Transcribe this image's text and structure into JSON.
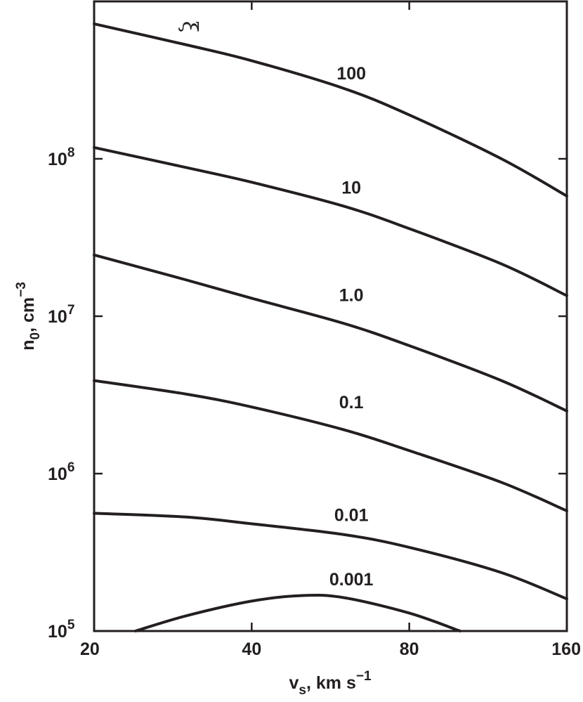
{
  "chart_data": {
    "type": "line",
    "xlabel": {
      "main": "v",
      "sub": "s",
      "rest": ", km s",
      "sup": "−1"
    },
    "ylabel": {
      "main": "n",
      "sub": "0",
      "rest": ", cm",
      "sup": "−3"
    },
    "x_scale": "log",
    "y_scale": "log",
    "xlim": [
      20,
      160
    ],
    "ylim": [
      100000,
      1000000000
    ],
    "x_ticks": [
      {
        "value": 20,
        "label": "20"
      },
      {
        "value": 40,
        "label": "40"
      },
      {
        "value": 80,
        "label": "80"
      },
      {
        "value": 160,
        "label": "160"
      }
    ],
    "y_ticks": [
      {
        "value": 100000,
        "base": "10",
        "exp": "5"
      },
      {
        "value": 1000000,
        "base": "10",
        "exp": "6"
      },
      {
        "value": 10000000,
        "base": "10",
        "exp": "7"
      },
      {
        "value": 100000000,
        "base": "10",
        "exp": "8"
      }
    ],
    "grid": false,
    "legend": "none",
    "parameter_label": "ξ",
    "series": [
      {
        "name": "100",
        "label_x": 62,
        "label_y": 320000000,
        "x": [
          20,
          30,
          40,
          60,
          80,
          120,
          160
        ],
        "y": [
          720000000,
          530000000,
          420000000,
          280000000,
          190000000,
          100000000,
          58000000
        ]
      },
      {
        "name": "10",
        "label_x": 62,
        "label_y": 60000000,
        "x": [
          20,
          30,
          40,
          60,
          80,
          120,
          160
        ],
        "y": [
          118000000,
          88000000,
          71000000,
          50000000,
          36000000,
          21500000,
          13500000
        ]
      },
      {
        "name": "1.0",
        "label_x": 62,
        "label_y": 12500000,
        "x": [
          20,
          30,
          40,
          60,
          80,
          120,
          160
        ],
        "y": [
          24500000,
          17000000,
          13000000,
          9000000,
          6500000,
          3900000,
          2500000
        ]
      },
      {
        "name": "0.1",
        "label_x": 62,
        "label_y": 2600000,
        "x": [
          20,
          30,
          40,
          60,
          80,
          120,
          160
        ],
        "y": [
          3900000,
          3200000,
          2650000,
          1900000,
          1400000,
          880000,
          580000
        ]
      },
      {
        "name": "0.01",
        "label_x": 62,
        "label_y": 500000,
        "x": [
          20,
          30,
          40,
          60,
          80,
          120,
          160
        ],
        "y": [
          560000,
          530000,
          480000,
          410000,
          340000,
          235000,
          160000
        ]
      },
      {
        "name": "0.001",
        "label_x": 62,
        "label_y": 195000,
        "x": [
          24,
          30,
          40,
          50,
          60,
          80,
          100
        ],
        "y": [
          100000,
          125000,
          155000,
          168000,
          163000,
          130000,
          100000
        ]
      }
    ]
  }
}
